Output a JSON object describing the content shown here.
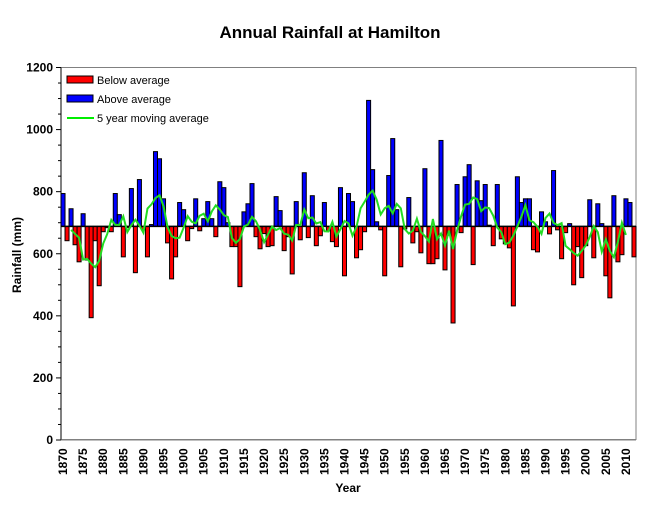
{
  "chart_data": {
    "type": "bar",
    "title": "Annual Rainfall at Hamilton",
    "xlabel": "Year",
    "ylabel": "Rainfall (mm)",
    "ylim": [
      0,
      1200
    ],
    "yticks": [
      0,
      200,
      400,
      600,
      800,
      1000,
      1200
    ],
    "y_minor_step": 50,
    "xlim": [
      1870,
      2012
    ],
    "xticks": [
      1870,
      1875,
      1880,
      1885,
      1890,
      1895,
      1900,
      1905,
      1910,
      1915,
      1920,
      1925,
      1930,
      1935,
      1940,
      1945,
      1950,
      1955,
      1960,
      1965,
      1970,
      1975,
      1980,
      1985,
      1990,
      1995,
      2000,
      2005,
      2010
    ],
    "grid": false,
    "legend_position": "top-left",
    "average": 688,
    "legend": [
      {
        "label": "Below average",
        "kind": "bar",
        "color": "#ff0000"
      },
      {
        "label": "Above average",
        "kind": "bar",
        "color": "#0000ff"
      },
      {
        "label": "5 year moving average",
        "kind": "line",
        "color": "#00ee00"
      }
    ],
    "colors": {
      "below": "#ff0000",
      "above": "#0000ff",
      "moving_average": "#22dd22",
      "bar_edge": "#000000"
    },
    "start_year": 1870,
    "values": [
      794,
      642,
      745,
      629,
      574,
      729,
      580,
      394,
      642,
      497,
      671,
      684,
      671,
      794,
      726,
      590,
      684,
      810,
      539,
      839,
      677,
      590,
      694,
      929,
      906,
      777,
      635,
      519,
      590,
      765,
      742,
      642,
      681,
      777,
      674,
      713,
      768,
      713,
      655,
      832,
      813,
      700,
      623,
      623,
      494,
      735,
      761,
      826,
      655,
      616,
      665,
      623,
      626,
      784,
      739,
      610,
      655,
      535,
      768,
      645,
      861,
      652,
      787,
      626,
      658,
      765,
      674,
      639,
      623,
      813,
      529,
      794,
      768,
      587,
      613,
      671,
      1094,
      871,
      703,
      677,
      529,
      852,
      971,
      742,
      558,
      680,
      781,
      635,
      671,
      603,
      874,
      568,
      568,
      584,
      965,
      548,
      660,
      377,
      823,
      668,
      848,
      887,
      565,
      835,
      771,
      823,
      692,
      626,
      823,
      648,
      632,
      619,
      432,
      848,
      765,
      777,
      777,
      613,
      606,
      735,
      703,
      664,
      868,
      677,
      584,
      668,
      697,
      500,
      623,
      523,
      626,
      774,
      587,
      761,
      697,
      529,
      458,
      787,
      574,
      597,
      777,
      765,
      590
    ],
    "moving_average_window": 5
  }
}
